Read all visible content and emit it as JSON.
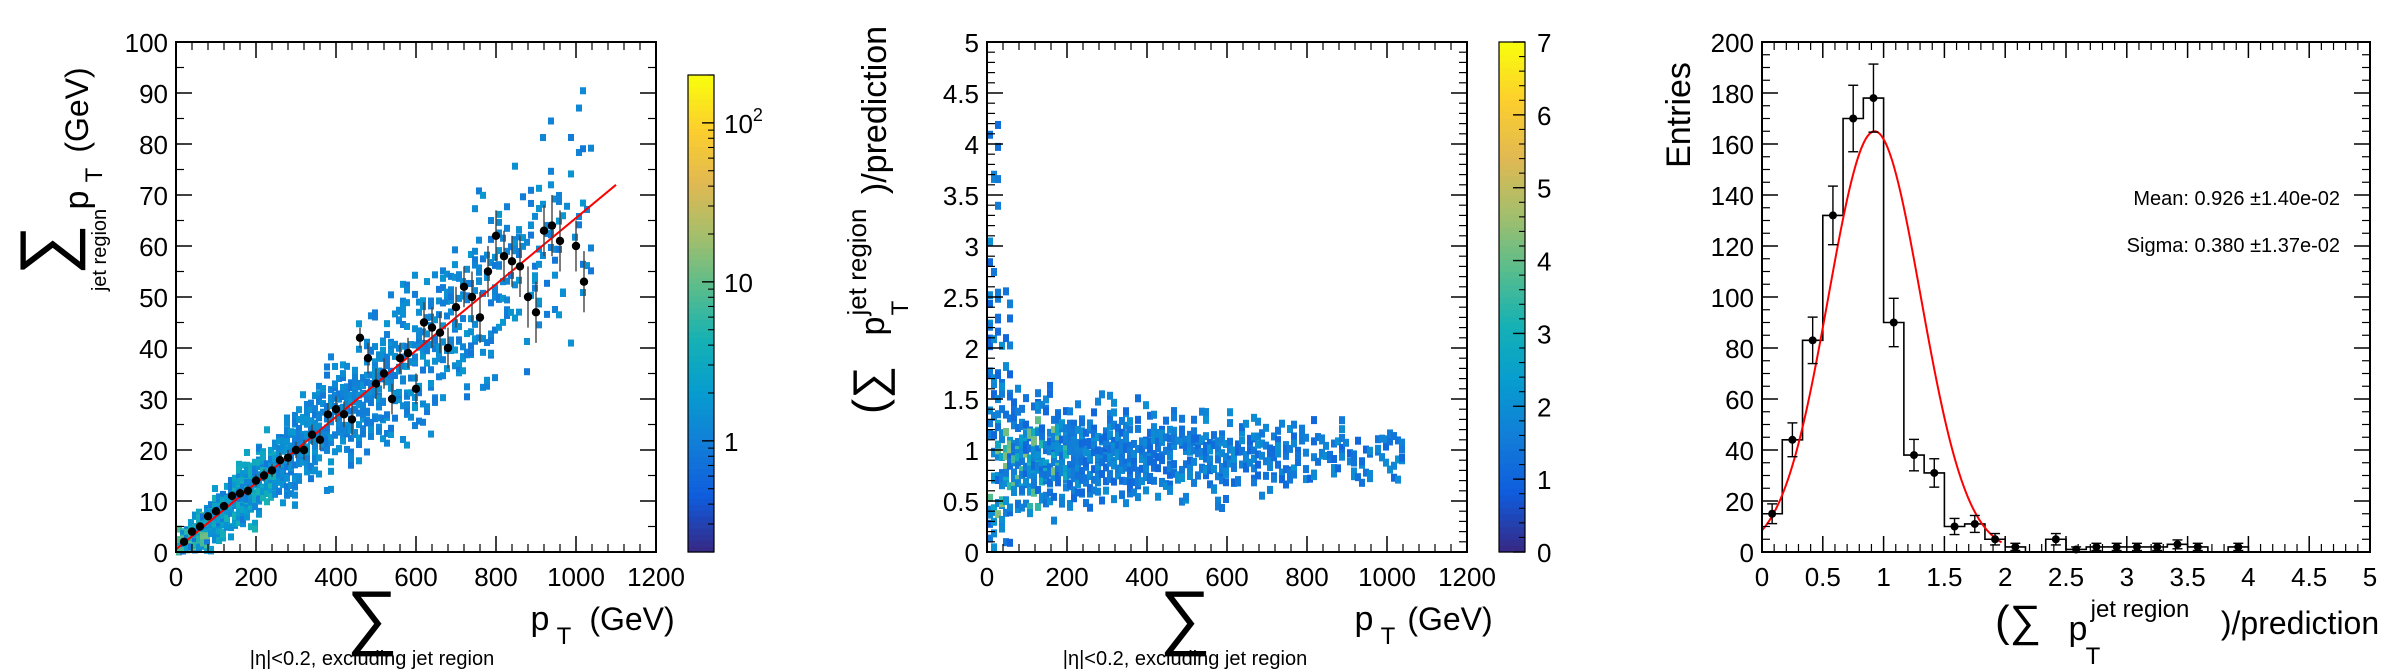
{
  "chart_data": [
    {
      "type": "heatmap",
      "xlabel_symbol": "∑",
      "xlabel_sub": "|η|<0.2, excluding jet region",
      "xlabel_main": "p",
      "xlabel_main_sub": "T",
      "xlabel_unit": "(GeV)",
      "ylabel_symbol": "∑",
      "ylabel_sub": "jet region",
      "ylabel_main": "p",
      "ylabel_main_sub": "T",
      "ylabel_unit": "(GeV)",
      "xlim": [
        0,
        1200
      ],
      "ylim": [
        0,
        100
      ],
      "xticks": [
        "0",
        "200",
        "400",
        "600",
        "800",
        "1000",
        "1200"
      ],
      "yticks": [
        "0",
        "10",
        "20",
        "30",
        "40",
        "50",
        "60",
        "70",
        "80",
        "90",
        "100"
      ],
      "colorbar": {
        "scale": "log",
        "min": 0.2,
        "max": 200,
        "ticks": [
          {
            "v": 1,
            "label": "1"
          },
          {
            "v": 10,
            "label": "10"
          },
          {
            "v": 100,
            "label": "10",
            "sup": "2"
          }
        ]
      },
      "fit_line": {
        "color": "#ff0000",
        "x": [
          0,
          1100
        ],
        "y": [
          0.5,
          72
        ]
      },
      "profile_points": [
        {
          "x": 20,
          "y": 2,
          "e": 0.5
        },
        {
          "x": 40,
          "y": 4,
          "e": 0.5
        },
        {
          "x": 60,
          "y": 5,
          "e": 0.6
        },
        {
          "x": 80,
          "y": 7,
          "e": 0.7
        },
        {
          "x": 100,
          "y": 8,
          "e": 0.7
        },
        {
          "x": 120,
          "y": 9,
          "e": 0.8
        },
        {
          "x": 140,
          "y": 11,
          "e": 0.9
        },
        {
          "x": 160,
          "y": 11.5,
          "e": 1
        },
        {
          "x": 180,
          "y": 12,
          "e": 1
        },
        {
          "x": 200,
          "y": 14,
          "e": 1.2
        },
        {
          "x": 220,
          "y": 15,
          "e": 1.2
        },
        {
          "x": 240,
          "y": 16,
          "e": 1.3
        },
        {
          "x": 260,
          "y": 18,
          "e": 1.5
        },
        {
          "x": 280,
          "y": 18.5,
          "e": 1.5
        },
        {
          "x": 300,
          "y": 20,
          "e": 1.6
        },
        {
          "x": 320,
          "y": 20,
          "e": 2
        },
        {
          "x": 340,
          "y": 23,
          "e": 2
        },
        {
          "x": 360,
          "y": 22,
          "e": 2
        },
        {
          "x": 380,
          "y": 27,
          "e": 2.2
        },
        {
          "x": 400,
          "y": 28,
          "e": 2.5
        },
        {
          "x": 420,
          "y": 27,
          "e": 2.5
        },
        {
          "x": 440,
          "y": 26,
          "e": 3
        },
        {
          "x": 460,
          "y": 42,
          "e": 2
        },
        {
          "x": 480,
          "y": 38,
          "e": 3
        },
        {
          "x": 500,
          "y": 33,
          "e": 3
        },
        {
          "x": 520,
          "y": 35,
          "e": 3
        },
        {
          "x": 540,
          "y": 30,
          "e": 3
        },
        {
          "x": 560,
          "y": 38,
          "e": 3
        },
        {
          "x": 580,
          "y": 39,
          "e": 3
        },
        {
          "x": 600,
          "y": 32,
          "e": 3
        },
        {
          "x": 620,
          "y": 45,
          "e": 4
        },
        {
          "x": 640,
          "y": 44,
          "e": 4
        },
        {
          "x": 660,
          "y": 43,
          "e": 4
        },
        {
          "x": 680,
          "y": 40,
          "e": 4
        },
        {
          "x": 700,
          "y": 48,
          "e": 4
        },
        {
          "x": 720,
          "y": 52,
          "e": 4
        },
        {
          "x": 740,
          "y": 50,
          "e": 5
        },
        {
          "x": 760,
          "y": 46,
          "e": 5
        },
        {
          "x": 780,
          "y": 55,
          "e": 5
        },
        {
          "x": 800,
          "y": 62,
          "e": 5
        },
        {
          "x": 820,
          "y": 58,
          "e": 5
        },
        {
          "x": 840,
          "y": 57,
          "e": 5
        },
        {
          "x": 860,
          "y": 56,
          "e": 6
        },
        {
          "x": 880,
          "y": 50,
          "e": 6
        },
        {
          "x": 900,
          "y": 47,
          "e": 6
        },
        {
          "x": 920,
          "y": 63,
          "e": 5
        },
        {
          "x": 940,
          "y": 64,
          "e": 6
        },
        {
          "x": 960,
          "y": 61,
          "e": 6
        },
        {
          "x": 1000,
          "y": 60,
          "e": 5
        },
        {
          "x": 1020,
          "y": 53,
          "e": 6
        }
      ]
    },
    {
      "type": "heatmap",
      "xlabel_symbol": "∑",
      "xlabel_sub": "|η|<0.2, excluding jet region",
      "xlabel_main": "p",
      "xlabel_main_sub": "T",
      "xlabel_unit": "(GeV)",
      "ylabel_prefix": "(∑",
      "ylabel_p": "p",
      "ylabel_p_sub": "T",
      "ylabel_p_sup": "jet region",
      "ylabel_suffix": ")/prediction",
      "xlim": [
        0,
        1200
      ],
      "ylim": [
        0,
        5
      ],
      "xticks": [
        "0",
        "200",
        "400",
        "600",
        "800",
        "1000",
        "1200"
      ],
      "yticks": [
        "0",
        "0.5",
        "1",
        "1.5",
        "2",
        "2.5",
        "3",
        "3.5",
        "4",
        "4.5",
        "5"
      ],
      "colorbar": {
        "scale": "linear",
        "min": 0,
        "max": 7,
        "ticks": [
          "0",
          "1",
          "2",
          "3",
          "4",
          "5",
          "6",
          "7"
        ]
      }
    },
    {
      "type": "histogram",
      "ylabel": "Entries",
      "xlabel_prefix": "(∑",
      "xlabel_p": "p",
      "xlabel_p_sub": "T",
      "xlabel_p_sup": "jet region",
      "xlabel_suffix": ")/prediction",
      "xlim": [
        0,
        5
      ],
      "ylim": [
        0,
        200
      ],
      "xticks": [
        "0",
        "0.5",
        "1",
        "1.5",
        "2",
        "2.5",
        "3",
        "3.5",
        "4",
        "4.5",
        "5"
      ],
      "yticks": [
        "0",
        "20",
        "40",
        "60",
        "80",
        "100",
        "120",
        "140",
        "160",
        "180",
        "200"
      ],
      "bin_width": 0.16667,
      "values": [
        15,
        44,
        83,
        132,
        170,
        178,
        90,
        38,
        31,
        10,
        11,
        5,
        2,
        0,
        5,
        1,
        2,
        2,
        2,
        2,
        3,
        2,
        0,
        2,
        0,
        0,
        0,
        0,
        0,
        0
      ],
      "fit": {
        "type": "gaussian",
        "color": "#ff0000",
        "amplitude": 165,
        "mean": 0.926,
        "sigma": 0.38,
        "range": [
          0,
          1.97
        ]
      },
      "stats": {
        "mean_label": "Mean: 0.926 ±1.40e-02",
        "sigma_label": "Sigma: 0.380 ±1.37e-02"
      }
    }
  ]
}
